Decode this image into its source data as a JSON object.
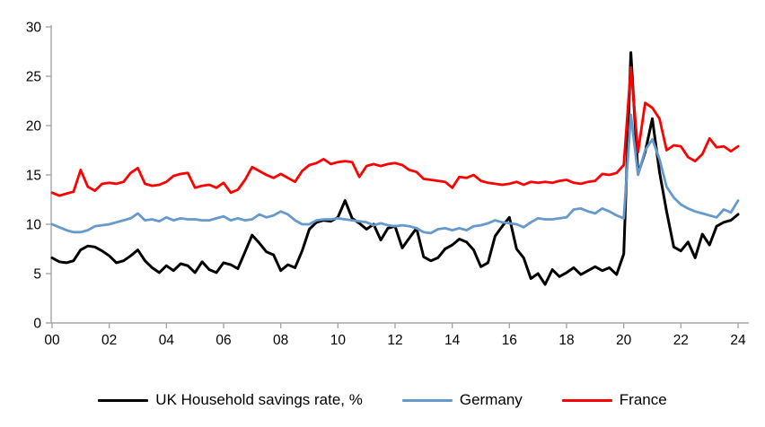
{
  "chart_data": {
    "type": "line",
    "title": "",
    "xlabel": "",
    "ylabel": "",
    "x_unit": "quarterly, years 2000Q1 - 2024Q1",
    "x_start_year": 2000,
    "x_step_years": 0.25,
    "xlim": [
      2000,
      2024.3
    ],
    "ylim": [
      0,
      30
    ],
    "grid": false,
    "legend_position": "bottom",
    "axis_color": "#a6a6a6",
    "y_ticks": [
      "0",
      "5",
      "10",
      "15",
      "20",
      "25",
      "30"
    ],
    "y_tick_values": [
      0,
      5,
      10,
      15,
      20,
      25,
      30
    ],
    "x_ticks": [
      "00",
      "02",
      "04",
      "06",
      "08",
      "10",
      "12",
      "14",
      "16",
      "18",
      "20",
      "22",
      "24"
    ],
    "x_tick_values": [
      2000,
      2002,
      2004,
      2006,
      2008,
      2010,
      2012,
      2014,
      2016,
      2018,
      2020,
      2022,
      2024
    ],
    "series": [
      {
        "name": "UK Household savings rate, %",
        "color": "#000000",
        "width": 3,
        "values": [
          6.6,
          6.2,
          6.1,
          6.3,
          7.4,
          7.8,
          7.7,
          7.3,
          6.8,
          6.1,
          6.3,
          6.8,
          7.4,
          6.3,
          5.6,
          5.1,
          5.8,
          5.3,
          6.0,
          5.8,
          5.1,
          6.2,
          5.4,
          5.1,
          6.1,
          5.9,
          5.5,
          7.2,
          8.9,
          8.1,
          7.2,
          6.9,
          5.3,
          5.9,
          5.6,
          7.3,
          9.5,
          10.2,
          10.4,
          10.3,
          10.7,
          12.4,
          10.6,
          10.1,
          9.5,
          10.0,
          8.4,
          9.6,
          9.8,
          7.6,
          8.6,
          9.6,
          6.7,
          6.3,
          6.6,
          7.5,
          7.9,
          8.5,
          8.2,
          7.4,
          5.7,
          6.1,
          8.8,
          9.8,
          10.7,
          7.5,
          6.6,
          4.5,
          5.0,
          3.9,
          5.4,
          4.7,
          5.1,
          5.6,
          4.9,
          5.3,
          5.7,
          5.3,
          5.6,
          4.9,
          7.0,
          27.4,
          15.1,
          17.3,
          20.7,
          15.3,
          11.3,
          7.7,
          7.3,
          8.2,
          6.6,
          9.0,
          7.9,
          9.8,
          10.2,
          10.4,
          11.0
        ]
      },
      {
        "name": "Germany",
        "color": "#6699cc",
        "width": 2.8,
        "values": [
          10.0,
          9.7,
          9.4,
          9.2,
          9.2,
          9.4,
          9.8,
          9.9,
          10.0,
          10.2,
          10.4,
          10.6,
          11.1,
          10.4,
          10.5,
          10.3,
          10.7,
          10.4,
          10.6,
          10.5,
          10.5,
          10.4,
          10.4,
          10.6,
          10.8,
          10.4,
          10.6,
          10.4,
          10.5,
          11.0,
          10.7,
          10.9,
          11.3,
          11.0,
          10.4,
          10.0,
          10.0,
          10.4,
          10.5,
          10.5,
          10.6,
          10.5,
          10.4,
          10.3,
          10.2,
          9.9,
          10.1,
          9.9,
          9.8,
          9.9,
          9.8,
          9.6,
          9.2,
          9.1,
          9.5,
          9.6,
          9.4,
          9.6,
          9.4,
          9.8,
          9.9,
          10.1,
          10.4,
          10.2,
          10.1,
          10.0,
          9.7,
          10.2,
          10.6,
          10.5,
          10.5,
          10.6,
          10.7,
          11.5,
          11.6,
          11.3,
          11.1,
          11.6,
          11.3,
          10.9,
          10.6,
          21.1,
          15.0,
          17.5,
          18.6,
          16.6,
          13.8,
          12.7,
          12.0,
          11.6,
          11.3,
          11.1,
          10.9,
          10.7,
          11.5,
          11.2,
          12.4
        ]
      },
      {
        "name": "France",
        "color": "#fe0000",
        "width": 2.8,
        "values": [
          13.2,
          12.9,
          13.1,
          13.3,
          15.5,
          13.8,
          13.4,
          14.1,
          14.2,
          14.1,
          14.3,
          15.2,
          15.7,
          14.1,
          13.9,
          14.0,
          14.3,
          14.9,
          15.1,
          15.2,
          13.7,
          13.9,
          14.0,
          13.7,
          14.2,
          13.2,
          13.5,
          14.5,
          15.8,
          15.4,
          15.0,
          14.7,
          15.1,
          14.7,
          14.3,
          15.4,
          16.0,
          16.2,
          16.6,
          16.1,
          16.3,
          16.4,
          16.3,
          14.8,
          15.9,
          16.1,
          15.9,
          16.1,
          16.2,
          16.0,
          15.5,
          15.3,
          14.6,
          14.5,
          14.4,
          14.3,
          13.7,
          14.8,
          14.7,
          15.0,
          14.4,
          14.2,
          14.1,
          14.0,
          14.1,
          14.3,
          14.0,
          14.3,
          14.2,
          14.3,
          14.2,
          14.4,
          14.5,
          14.2,
          14.1,
          14.3,
          14.4,
          15.1,
          15.0,
          15.2,
          16.0,
          25.9,
          17.3,
          22.3,
          21.8,
          20.7,
          17.5,
          18.0,
          17.9,
          16.8,
          16.4,
          17.1,
          18.7,
          17.8,
          17.9,
          17.4,
          17.9
        ]
      }
    ]
  },
  "legend": {
    "items": [
      {
        "label": "UK Household savings rate, %"
      },
      {
        "label": "Germany"
      },
      {
        "label": "France"
      }
    ]
  }
}
